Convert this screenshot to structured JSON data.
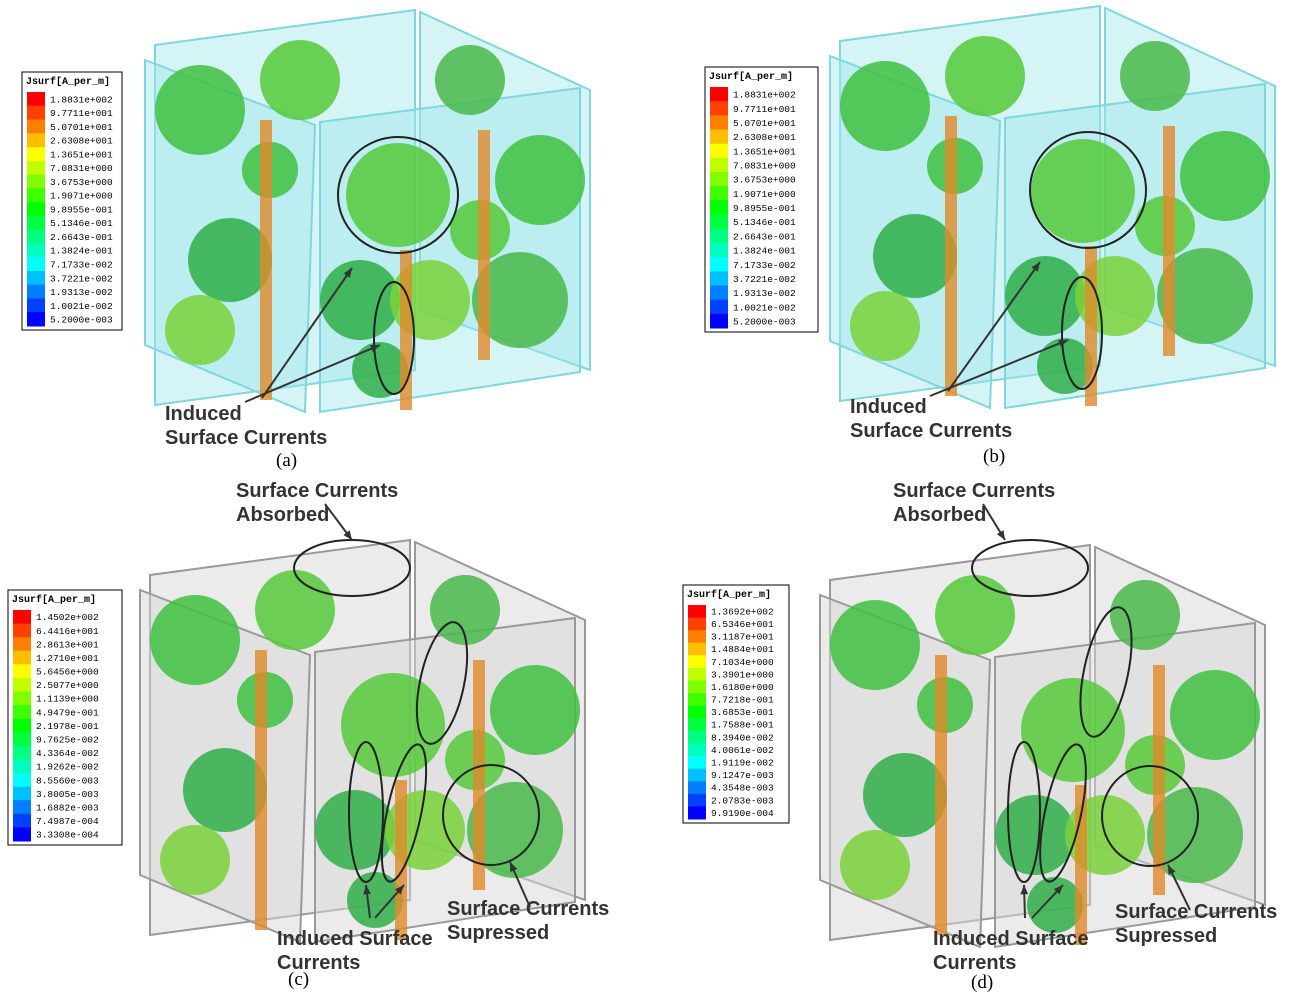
{
  "panels": [
    {
      "legend": {
        "title": "Jsurf[A_per_m]",
        "labels": [
          "1.8831e+002",
          "9.7711e+001",
          "5.0701e+001",
          "2.6308e+001",
          "1.3651e+001",
          "7.0831e+000",
          "3.6753e+000",
          "1.9071e+000",
          "9.8955e-001",
          "5.1346e-001",
          "2.6643e-001",
          "1.3824e-001",
          "7.1733e-002",
          "3.7221e-002",
          "1.9313e-002",
          "1.0021e-002",
          "5.2000e-003"
        ]
      },
      "annotations": [
        {
          "lines": [
            "Induced",
            "Surface Currents"
          ]
        }
      ],
      "caption": "(a)"
    },
    {
      "legend": {
        "title": "Jsurf[A_per_m]",
        "labels": [
          "1.8831e+002",
          "9.7711e+001",
          "5.0701e+001",
          "2.6308e+001",
          "1.3651e+001",
          "7.0831e+000",
          "3.6753e+000",
          "1.9071e+000",
          "9.8955e-001",
          "5.1346e-001",
          "2.6643e-001",
          "1.3824e-001",
          "7.1733e-002",
          "3.7221e-002",
          "1.9313e-002",
          "1.0021e-002",
          "5.2000e-003"
        ]
      },
      "annotations": [
        {
          "lines": [
            "Induced",
            "Surface Currents"
          ]
        }
      ],
      "caption": "(b)"
    },
    {
      "legend": {
        "title": "Jsurf[A_per_m]",
        "labels": [
          "1.4502e+002",
          "6.4416e+001",
          "2.8613e+001",
          "1.2710e+001",
          "5.6456e+000",
          "2.5077e+000",
          "1.1139e+000",
          "4.9479e-001",
          "2.1978e-001",
          "9.7625e-002",
          "4.3364e-002",
          "1.9262e-002",
          "8.5560e-003",
          "3.8005e-003",
          "1.6882e-003",
          "7.4987e-004",
          "3.3308e-004"
        ]
      },
      "annotations": [
        {
          "lines": [
            "Surface Currents",
            "Absorbed"
          ]
        },
        {
          "lines": [
            "Induced Surface",
            "Currents"
          ]
        },
        {
          "lines": [
            "Surface Currents",
            "Supressed"
          ]
        }
      ],
      "caption": "(c)"
    },
    {
      "legend": {
        "title": "Jsurf[A_per_m]",
        "labels": [
          "1.3692e+002",
          "6.5346e+001",
          "3.1187e+001",
          "1.4884e+001",
          "7.1034e+000",
          "3.3901e+000",
          "1.6180e+000",
          "7.7218e-001",
          "3.6853e-001",
          "1.7588e-001",
          "8.3940e-002",
          "4.0061e-002",
          "1.9119e-002",
          "9.1247e-003",
          "4.3548e-003",
          "2.0783e-003",
          "9.9190e-004"
        ]
      },
      "annotations": [
        {
          "lines": [
            "Surface Currents",
            "Absorbed"
          ]
        },
        {
          "lines": [
            "Induced Surface",
            "Currents"
          ]
        },
        {
          "lines": [
            "Surface Currents",
            "Supressed"
          ]
        }
      ],
      "caption": "(d)"
    }
  ]
}
